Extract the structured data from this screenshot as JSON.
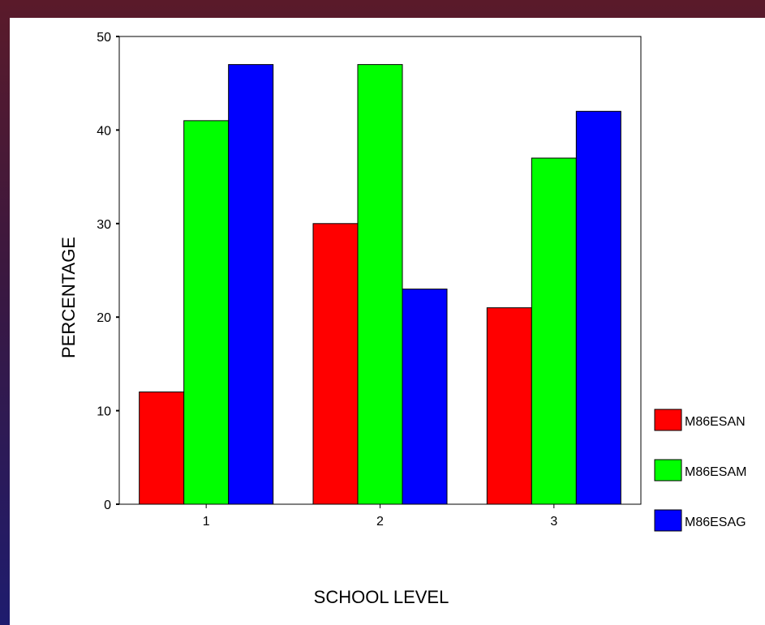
{
  "chart_data": {
    "type": "bar",
    "title": "",
    "xlabel": "SCHOOL LEVEL",
    "ylabel": "PERCENTAGE",
    "categories": [
      "1",
      "2",
      "3"
    ],
    "ylim": [
      0,
      50
    ],
    "yticks": [
      0,
      10,
      20,
      30,
      40,
      50
    ],
    "grid": false,
    "legend_position": "right",
    "series": [
      {
        "name": "M86ESAN",
        "color": "#ff0000",
        "values": [
          12,
          30,
          21
        ]
      },
      {
        "name": "M86ESAM",
        "color": "#00ff00",
        "values": [
          41,
          47,
          37
        ]
      },
      {
        "name": "M86ESAG",
        "color": "#0000ff",
        "values": [
          47,
          23,
          42
        ]
      }
    ]
  }
}
